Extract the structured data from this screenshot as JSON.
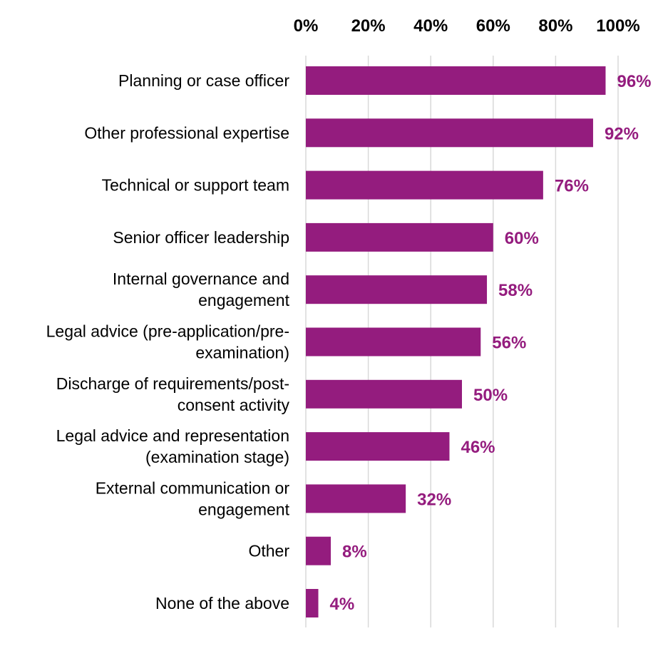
{
  "chart_data": {
    "type": "bar",
    "orientation": "horizontal",
    "title": "",
    "xlabel": "",
    "ylabel": "",
    "xlim": [
      0,
      100
    ],
    "x_ticks": [
      "0%",
      "20%",
      "40%",
      "60%",
      "80%",
      "100%"
    ],
    "x_tick_values": [
      0,
      20,
      40,
      60,
      80,
      100
    ],
    "x_axis_position": "top",
    "grid": "vertical",
    "legend": "none",
    "categories": [
      [
        "Planning or case officer"
      ],
      [
        "Other professional expertise"
      ],
      [
        "Technical or support team"
      ],
      [
        "Senior officer leadership"
      ],
      [
        "Internal governance and",
        "engagement"
      ],
      [
        "Legal advice (pre-application/pre-",
        "examination)"
      ],
      [
        "Discharge of requirements/post-",
        "consent activity"
      ],
      [
        "Legal advice and representation",
        "(examination stage)"
      ],
      [
        "External communication or",
        "engagement"
      ],
      [
        "Other"
      ],
      [
        "None of the above"
      ]
    ],
    "values": [
      96,
      92,
      76,
      60,
      58,
      56,
      50,
      46,
      32,
      8,
      4
    ],
    "value_labels": [
      "96%",
      "92%",
      "76%",
      "60%",
      "58%",
      "56%",
      "50%",
      "46%",
      "32%",
      "8%",
      "4%"
    ],
    "bar_color": "#941c7e",
    "label_color": "#941c7e",
    "grid_color": "#d9d9d9"
  }
}
